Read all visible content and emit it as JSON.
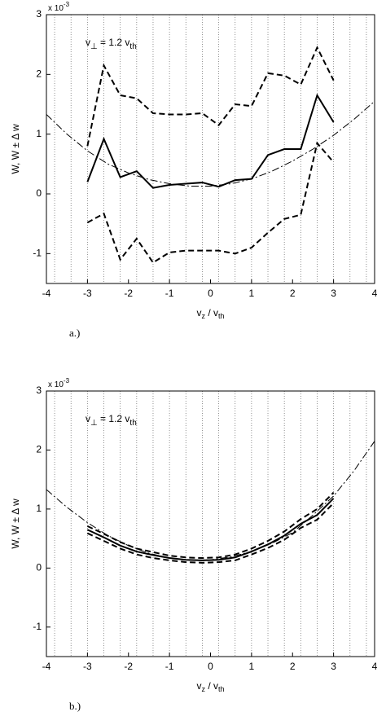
{
  "chart_data": [
    {
      "type": "line",
      "panel_label": "a.)",
      "ylabel": "W,  W ± Δ w",
      "xlabel": [
        "v",
        "z",
        " / v",
        "th"
      ],
      "y_exponent": [
        "x 10",
        "-3"
      ],
      "annotation": [
        "v",
        "⊥",
        " = 1.2 v",
        "th"
      ],
      "xlim": [
        -4,
        4
      ],
      "ylim": [
        -1.5,
        3
      ],
      "xticks": [
        -4,
        -3,
        -2,
        -1,
        0,
        1,
        2,
        3,
        4
      ],
      "yticks": [
        -1,
        0,
        1,
        2,
        3
      ],
      "x_grid": [
        -3.8,
        -3.4,
        -3,
        -2.6,
        -2.2,
        -1.8,
        -1.4,
        -1,
        -0.6,
        -0.2,
        0.2,
        0.6,
        1,
        1.4,
        1.8,
        2.2,
        2.6,
        3,
        3.4,
        3.8
      ],
      "x": [
        -3,
        -2.6,
        -2.2,
        -1.8,
        -1.4,
        -1,
        -0.6,
        -0.2,
        0.2,
        0.6,
        1,
        1.4,
        1.8,
        2.2,
        2.6,
        3
      ],
      "series": [
        {
          "style": "solid",
          "color": "#000000",
          "values": [
            0.2,
            0.92,
            0.28,
            0.38,
            0.1,
            0.15,
            0.17,
            0.19,
            0.12,
            0.23,
            0.25,
            0.65,
            0.75,
            0.75,
            1.65,
            1.2
          ]
        },
        {
          "style": "dashed",
          "color": "#000000",
          "values": [
            0.8,
            2.15,
            1.65,
            1.6,
            1.35,
            1.33,
            1.33,
            1.35,
            1.15,
            1.5,
            1.47,
            2.02,
            1.98,
            1.83,
            2.45,
            1.9
          ]
        },
        {
          "style": "dashed",
          "color": "#000000",
          "values": [
            -0.48,
            -0.33,
            -1.1,
            -0.75,
            -1.15,
            -0.98,
            -0.95,
            -0.95,
            -0.95,
            -1.0,
            -0.9,
            -0.65,
            -0.42,
            -0.35,
            0.85,
            0.53
          ]
        },
        {
          "style": "dashdot",
          "color": "#000000",
          "x": [
            -4,
            -3.5,
            -3,
            -2.5,
            -2,
            -1.5,
            -1,
            -0.5,
            0,
            0.5,
            1,
            1.5,
            2,
            2.5,
            3,
            3.5,
            4
          ],
          "values": [
            1.33,
            1.0,
            0.72,
            0.5,
            0.35,
            0.24,
            0.17,
            0.13,
            0.13,
            0.17,
            0.25,
            0.38,
            0.55,
            0.75,
            0.98,
            1.25,
            1.55
          ]
        }
      ]
    },
    {
      "type": "line",
      "panel_label": "b.)",
      "ylabel": "W,  W ± Δ w",
      "xlabel": [
        "v",
        "z",
        " / v",
        "th"
      ],
      "y_exponent": [
        "x 10",
        "-3"
      ],
      "annotation": [
        "v",
        "⊥",
        " = 1.2 v",
        "th"
      ],
      "xlim": [
        -4,
        4
      ],
      "ylim": [
        -1.5,
        3
      ],
      "xticks": [
        -4,
        -3,
        -2,
        -1,
        0,
        1,
        2,
        3,
        4
      ],
      "yticks": [
        -1,
        0,
        1,
        2,
        3
      ],
      "x_grid": [
        -3.8,
        -3.4,
        -3,
        -2.6,
        -2.2,
        -1.8,
        -1.4,
        -1,
        -0.6,
        -0.2,
        0.2,
        0.6,
        1,
        1.4,
        1.8,
        2.2,
        2.6,
        3,
        3.4,
        3.8
      ],
      "x": [
        -3,
        -2.6,
        -2.2,
        -1.8,
        -1.4,
        -1,
        -0.6,
        -0.2,
        0.2,
        0.6,
        1,
        1.4,
        1.8,
        2.2,
        2.6,
        3
      ],
      "series": [
        {
          "style": "solid",
          "color": "#000000",
          "values": [
            0.65,
            0.52,
            0.38,
            0.28,
            0.22,
            0.17,
            0.14,
            0.13,
            0.14,
            0.18,
            0.28,
            0.4,
            0.55,
            0.75,
            0.9,
            1.18
          ]
        },
        {
          "style": "dashed",
          "color": "#000000",
          "values": [
            0.71,
            0.58,
            0.44,
            0.33,
            0.27,
            0.21,
            0.18,
            0.17,
            0.18,
            0.23,
            0.33,
            0.46,
            0.62,
            0.83,
            1.0,
            1.28
          ]
        },
        {
          "style": "dashed",
          "color": "#000000",
          "values": [
            0.59,
            0.46,
            0.33,
            0.23,
            0.17,
            0.13,
            0.1,
            0.09,
            0.1,
            0.13,
            0.23,
            0.34,
            0.48,
            0.68,
            0.82,
            1.1
          ]
        },
        {
          "style": "dashdot",
          "color": "#000000",
          "x": [
            -4,
            -3.5,
            -3,
            -2.5,
            -2,
            -1.5,
            -1,
            -0.5,
            0,
            0.5,
            1,
            1.5,
            2,
            2.5,
            3,
            3.5,
            4
          ],
          "values": [
            1.33,
            1.03,
            0.77,
            0.55,
            0.38,
            0.25,
            0.17,
            0.13,
            0.14,
            0.19,
            0.28,
            0.42,
            0.6,
            0.9,
            1.22,
            1.65,
            2.15
          ]
        }
      ]
    }
  ]
}
